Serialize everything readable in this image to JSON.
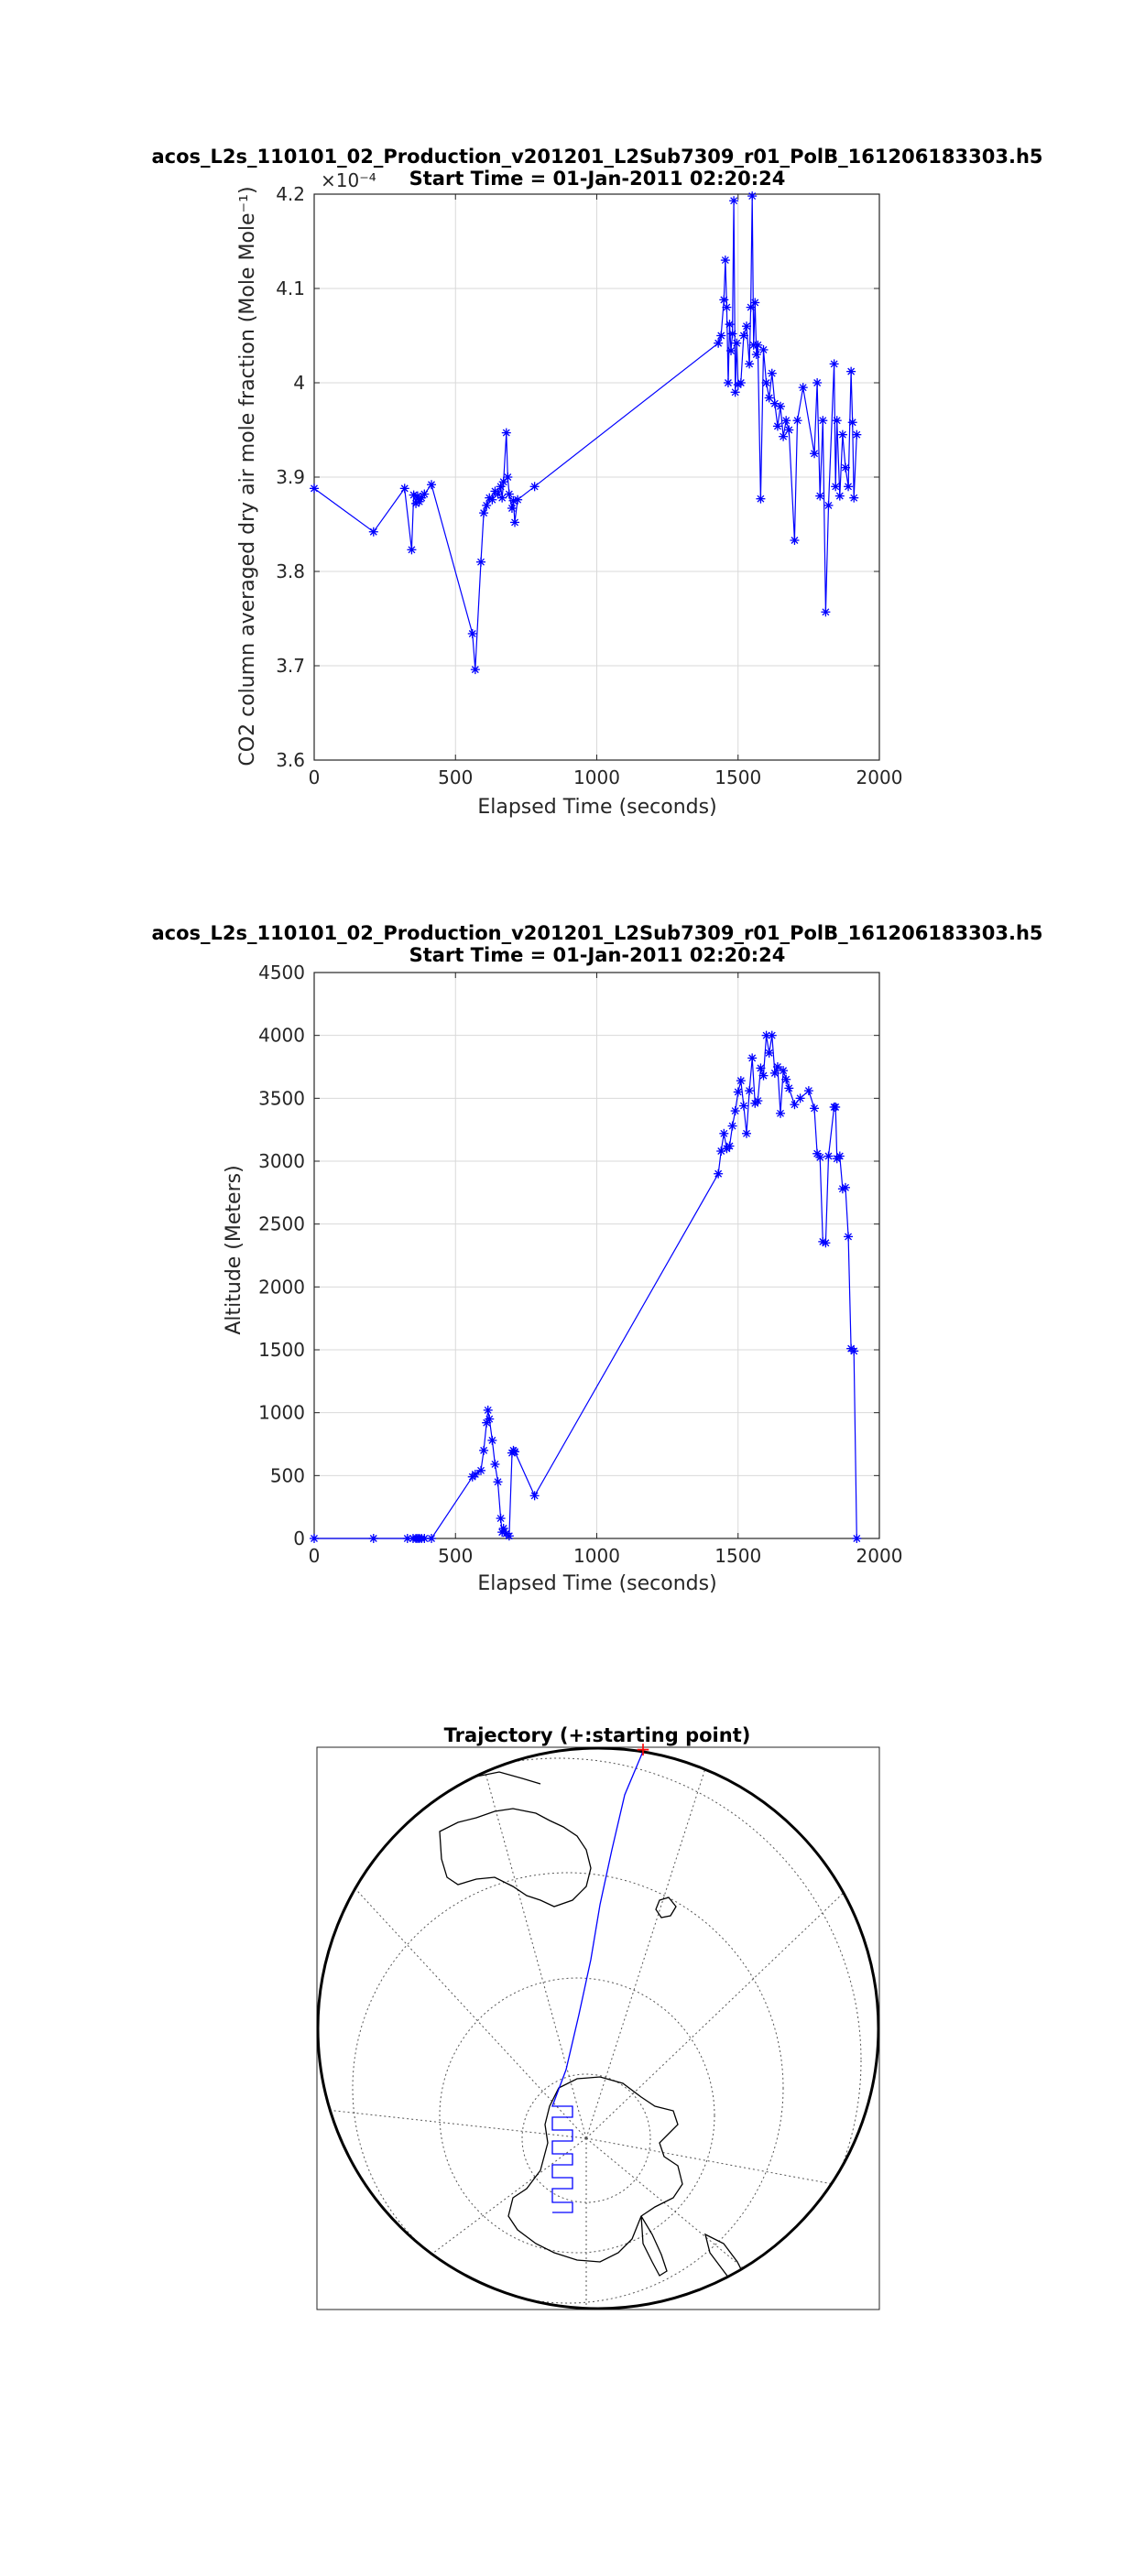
{
  "chart_data": [
    {
      "type": "line",
      "title": "acos_L2s_110101_02_Production_v201201_L2Sub7309_r01_PolB_161206183303.h5",
      "subtitle": "Start Time = 01-Jan-2011 02:20:24",
      "xlabel": "Elapsed Time (seconds)",
      "ylabel": "CO2 column averaged dry air mole fraction (Mole Mole⁻¹)",
      "y_exponent_label": "×10⁻⁴",
      "xlim": [
        0,
        2000
      ],
      "ylim": [
        3.6,
        4.2
      ],
      "xticks": [
        0,
        500,
        1000,
        1500,
        2000
      ],
      "yticks": [
        3.6,
        3.7,
        3.8,
        3.9,
        4.0,
        4.1,
        4.2
      ],
      "ytick_labels": [
        "3.6",
        "3.7",
        "3.8",
        "3.9",
        "4",
        "4.1",
        "4.2"
      ],
      "grid": true,
      "marker": "*",
      "color": "#0000ff",
      "series": [
        {
          "x": [
            0,
            210,
            320,
            345,
            352,
            360,
            366,
            372,
            380,
            390,
            415,
            560,
            570,
            590,
            600,
            610,
            620,
            630,
            640,
            650,
            660,
            665,
            670,
            680,
            685,
            690,
            700,
            705,
            710,
            720,
            780,
            1430,
            1440,
            1450,
            1455,
            1460,
            1465,
            1470,
            1475,
            1480,
            1485,
            1490,
            1495,
            1500,
            1510,
            1520,
            1530,
            1540,
            1545,
            1550,
            1555,
            1560,
            1565,
            1570,
            1580,
            1590,
            1600,
            1610,
            1620,
            1630,
            1640,
            1650,
            1660,
            1670,
            1680,
            1700,
            1710,
            1730,
            1770,
            1780,
            1790,
            1800,
            1810,
            1820,
            1840,
            1845,
            1850,
            1860,
            1870,
            1880,
            1890,
            1900,
            1905,
            1910,
            1920
          ],
          "y": [
            3.888,
            3.842,
            3.888,
            3.823,
            3.881,
            3.872,
            3.88,
            3.874,
            3.878,
            3.882,
            3.892,
            3.734,
            3.696,
            3.81,
            3.862,
            3.87,
            3.878,
            3.876,
            3.885,
            3.882,
            3.89,
            3.878,
            3.895,
            3.947,
            3.9,
            3.882,
            3.867,
            3.875,
            3.852,
            3.876,
            3.89,
            4.042,
            4.05,
            4.088,
            4.13,
            4.08,
            4.0,
            4.062,
            4.034,
            4.052,
            4.193,
            3.99,
            4.042,
            3.998,
            4.0,
            4.05,
            4.06,
            4.02,
            4.08,
            4.198,
            4.04,
            4.085,
            4.03,
            4.04,
            3.877,
            4.035,
            4.0,
            3.984,
            4.01,
            3.978,
            3.954,
            3.975,
            3.943,
            3.96,
            3.95,
            3.833,
            3.96,
            3.995,
            3.925,
            4.0,
            3.88,
            3.96,
            3.757,
            3.87,
            4.02,
            3.89,
            3.96,
            3.88,
            3.945,
            3.91,
            3.89,
            4.012,
            3.958,
            3.878,
            3.945
          ]
        }
      ]
    },
    {
      "type": "line",
      "title": "acos_L2s_110101_02_Production_v201201_L2Sub7309_r01_PolB_161206183303.h5",
      "subtitle": "Start Time = 01-Jan-2011 02:20:24",
      "xlabel": "Elapsed Time (seconds)",
      "ylabel": "Altitude (Meters)",
      "xlim": [
        0,
        2000
      ],
      "ylim": [
        0,
        4500
      ],
      "xticks": [
        0,
        500,
        1000,
        1500,
        2000
      ],
      "yticks": [
        0,
        500,
        1000,
        1500,
        2000,
        2500,
        3000,
        3500,
        4000,
        4500
      ],
      "grid": true,
      "marker": "*",
      "color": "#0000ff",
      "series": [
        {
          "x": [
            0,
            210,
            330,
            350,
            360,
            366,
            372,
            380,
            390,
            415,
            560,
            570,
            590,
            600,
            610,
            615,
            620,
            630,
            640,
            650,
            660,
            665,
            670,
            680,
            690,
            700,
            705,
            710,
            780,
            1430,
            1440,
            1450,
            1460,
            1470,
            1480,
            1490,
            1500,
            1510,
            1520,
            1530,
            1540,
            1550,
            1560,
            1570,
            1580,
            1590,
            1600,
            1610,
            1620,
            1630,
            1640,
            1650,
            1660,
            1670,
            1680,
            1700,
            1720,
            1750,
            1770,
            1780,
            1790,
            1800,
            1810,
            1820,
            1840,
            1845,
            1850,
            1860,
            1870,
            1880,
            1890,
            1900,
            1910,
            1920
          ],
          "y": [
            0,
            0,
            0,
            0,
            0,
            0,
            0,
            0,
            0,
            0,
            490,
            510,
            540,
            700,
            920,
            1020,
            950,
            780,
            590,
            450,
            160,
            50,
            80,
            40,
            20,
            680,
            700,
            690,
            340,
            2900,
            3080,
            3220,
            3100,
            3120,
            3280,
            3400,
            3550,
            3640,
            3440,
            3220,
            3560,
            3820,
            3460,
            3480,
            3740,
            3680,
            4000,
            3860,
            4000,
            3700,
            3750,
            3380,
            3720,
            3650,
            3580,
            3450,
            3500,
            3560,
            3420,
            3060,
            3030,
            2360,
            2350,
            3040,
            3430,
            3430,
            3020,
            3040,
            2780,
            2790,
            2400,
            1510,
            1490,
            0
          ]
        }
      ]
    }
  ],
  "map": {
    "title": "Trajectory (+:starting point)",
    "start_marker": "+",
    "start_marker_color": "#ff0000",
    "track_color": "#0000ff",
    "coast_color": "#000000",
    "graticule": "dotted"
  }
}
